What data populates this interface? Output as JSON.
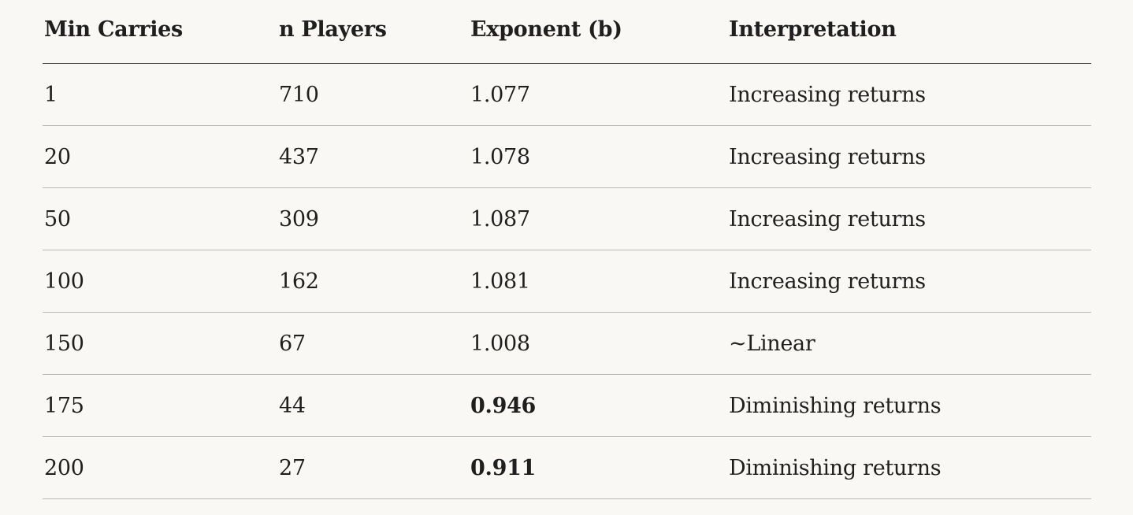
{
  "table": {
    "headers": [
      "Min Carries",
      "n Players",
      "Exponent (b)",
      "Interpretation"
    ],
    "rows": [
      {
        "min_carries": "1",
        "n_players": "710",
        "exponent": "1.077",
        "exponent_bold": false,
        "interpretation": "Increasing returns"
      },
      {
        "min_carries": "20",
        "n_players": "437",
        "exponent": "1.078",
        "exponent_bold": false,
        "interpretation": "Increasing returns"
      },
      {
        "min_carries": "50",
        "n_players": "309",
        "exponent": "1.087",
        "exponent_bold": false,
        "interpretation": "Increasing returns"
      },
      {
        "min_carries": "100",
        "n_players": "162",
        "exponent": "1.081",
        "exponent_bold": false,
        "interpretation": "Increasing returns"
      },
      {
        "min_carries": "150",
        "n_players": "67",
        "exponent": "1.008",
        "exponent_bold": false,
        "interpretation": "~Linear"
      },
      {
        "min_carries": "175",
        "n_players": "44",
        "exponent": "0.946",
        "exponent_bold": true,
        "interpretation": "Diminishing returns"
      },
      {
        "min_carries": "200",
        "n_players": "27",
        "exponent": "0.911",
        "exponent_bold": true,
        "interpretation": "Diminishing returns"
      }
    ]
  }
}
